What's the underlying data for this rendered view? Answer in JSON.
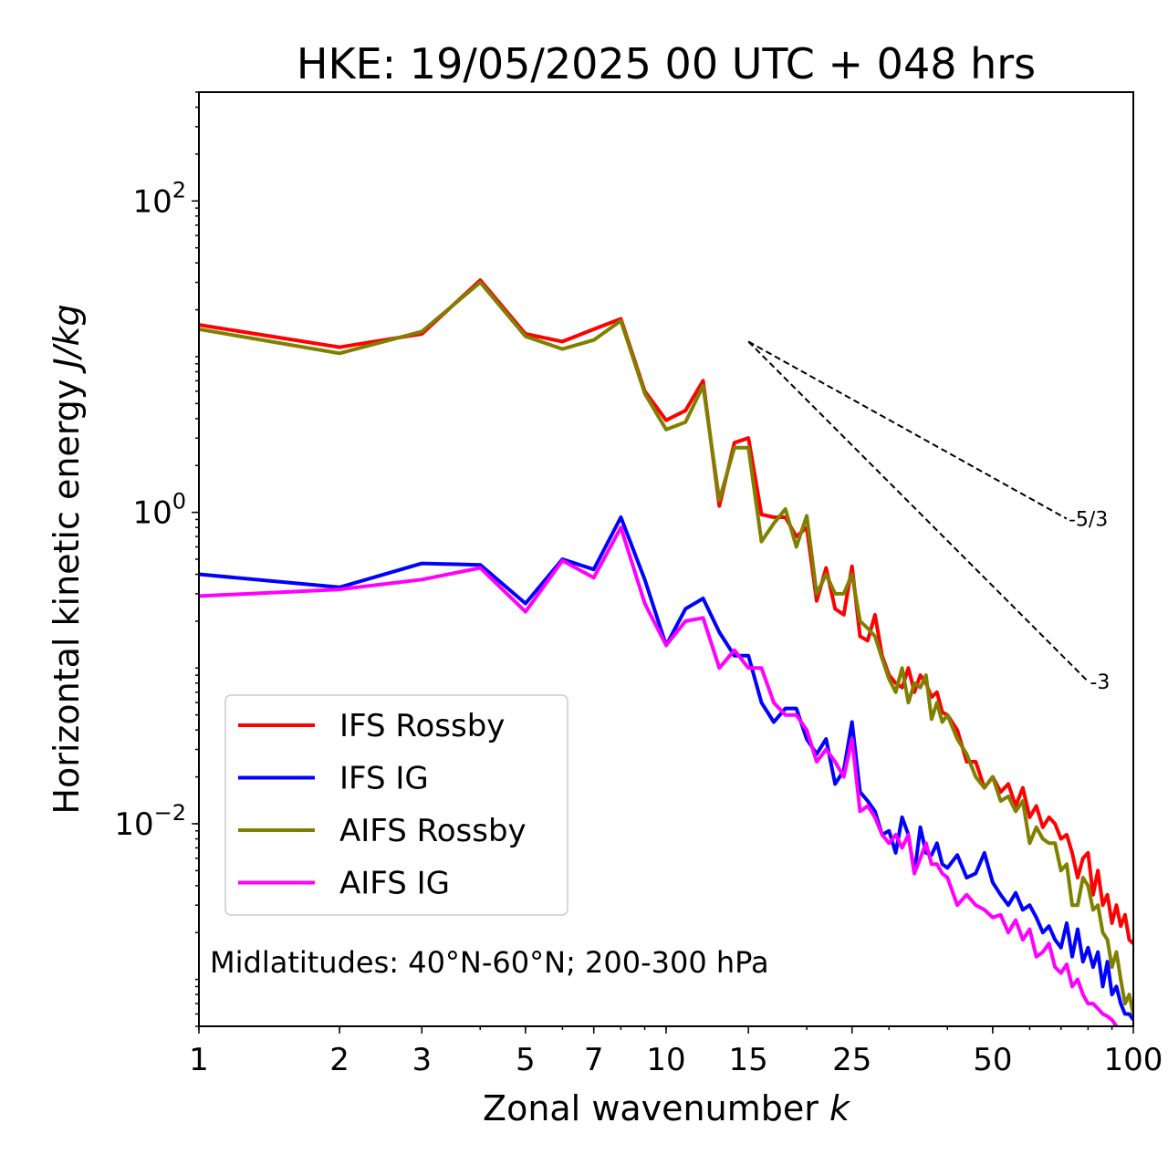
{
  "chart_data": {
    "type": "line",
    "title": "HKE: 19/05/2025 00 UTC + 048 hrs",
    "xlabel": "Zonal wavenumber",
    "xlabel_var": "k",
    "ylabel": "Horizontal kinetic energy",
    "ylabel_unit": "J/kg",
    "xscale": "log",
    "yscale": "log",
    "xlim": [
      1,
      100
    ],
    "ylim": [
      0.0005,
      500
    ],
    "x_ticks": [
      1,
      2,
      3,
      5,
      7,
      10,
      15,
      25,
      50,
      100
    ],
    "x_tick_labels": [
      "1",
      "2",
      "3",
      "5",
      "7",
      "10",
      "15",
      "25",
      "50",
      "100"
    ],
    "y_ticks": [
      100,
      1,
      0.01
    ],
    "y_tick_labels": [
      {
        "base": "10",
        "exp": "2"
      },
      {
        "base": "10",
        "exp": "0"
      },
      {
        "base": "10",
        "exp": "−2"
      }
    ],
    "legend_position": "lower-left",
    "annotation": "Midlatitudes: 40°N-60°N; 200-300 hPa",
    "reference_lines": [
      {
        "label": "-5/3",
        "x": [
          15,
          72
        ],
        "y": [
          12.5,
          0.91
        ]
      },
      {
        "label": "-3",
        "x": [
          15,
          80
        ],
        "y": [
          12.5,
          0.082
        ]
      }
    ],
    "series": [
      {
        "name": "IFS Rossby",
        "color": "#ff0000",
        "x": [
          1,
          2,
          3,
          4,
          5,
          6,
          7,
          8,
          9,
          10,
          11,
          12,
          13,
          14,
          15,
          16,
          17,
          18,
          19,
          20,
          21,
          22,
          23,
          24,
          25,
          26,
          27,
          28,
          29,
          30,
          31,
          32,
          33,
          34,
          35,
          36,
          37,
          38,
          39,
          40,
          42,
          44,
          46,
          48,
          50,
          52,
          54,
          56,
          58,
          60,
          62,
          64,
          66,
          68,
          70,
          72,
          74,
          76,
          78,
          80,
          82,
          84,
          86,
          88,
          90,
          92,
          94,
          96,
          98,
          100
        ],
        "y": [
          16,
          11.5,
          14,
          31,
          14,
          12.5,
          15,
          17.5,
          6,
          3.9,
          4.5,
          7,
          1.1,
          2.8,
          3,
          0.97,
          0.93,
          0.93,
          0.7,
          0.8,
          0.27,
          0.44,
          0.24,
          0.22,
          0.45,
          0.16,
          0.15,
          0.22,
          0.12,
          0.09,
          0.08,
          0.075,
          0.1,
          0.07,
          0.09,
          0.08,
          0.065,
          0.07,
          0.052,
          0.05,
          0.04,
          0.025,
          0.025,
          0.017,
          0.02,
          0.016,
          0.018,
          0.013,
          0.017,
          0.011,
          0.013,
          0.0095,
          0.011,
          0.01,
          0.008,
          0.0085,
          0.0065,
          0.0045,
          0.006,
          0.0065,
          0.0035,
          0.005,
          0.003,
          0.0035,
          0.0023,
          0.003,
          0.0022,
          0.0026,
          0.0018,
          0.0017
        ]
      },
      {
        "name": "IFS IG",
        "color": "#0000ff",
        "x": [
          1,
          2,
          3,
          4,
          5,
          6,
          7,
          8,
          9,
          10,
          11,
          12,
          13,
          14,
          15,
          16,
          17,
          18,
          19,
          20,
          21,
          22,
          23,
          24,
          25,
          26,
          27,
          28,
          29,
          30,
          31,
          32,
          33,
          34,
          35,
          36,
          37,
          38,
          39,
          40,
          42,
          44,
          46,
          48,
          50,
          52,
          54,
          56,
          58,
          60,
          62,
          64,
          66,
          68,
          70,
          72,
          74,
          76,
          78,
          80,
          82,
          84,
          86,
          88,
          90,
          92,
          94,
          96,
          98,
          100
        ],
        "y": [
          0.4,
          0.33,
          0.47,
          0.46,
          0.26,
          0.5,
          0.43,
          0.93,
          0.37,
          0.14,
          0.24,
          0.28,
          0.17,
          0.12,
          0.12,
          0.06,
          0.045,
          0.055,
          0.055,
          0.035,
          0.028,
          0.035,
          0.018,
          0.022,
          0.045,
          0.016,
          0.014,
          0.012,
          0.0085,
          0.009,
          0.0065,
          0.011,
          0.0085,
          0.0048,
          0.0095,
          0.0065,
          0.0063,
          0.0075,
          0.0055,
          0.0052,
          0.0063,
          0.0045,
          0.0048,
          0.0065,
          0.0042,
          0.0035,
          0.003,
          0.0036,
          0.0028,
          0.003,
          0.0025,
          0.002,
          0.0022,
          0.0018,
          0.0016,
          0.0023,
          0.0014,
          0.0021,
          0.0013,
          0.0016,
          0.0012,
          0.0015,
          0.0009,
          0.0013,
          0.0008,
          0.0009,
          0.0007,
          0.0006,
          0.0006,
          0.00055
        ]
      },
      {
        "name": "AIFS Rossby",
        "color": "#808000",
        "x": [
          1,
          2,
          3,
          4,
          5,
          6,
          7,
          8,
          9,
          10,
          11,
          12,
          13,
          14,
          15,
          16,
          17,
          18,
          19,
          20,
          21,
          22,
          23,
          24,
          25,
          26,
          27,
          28,
          29,
          30,
          31,
          32,
          33,
          34,
          35,
          36,
          37,
          38,
          39,
          40,
          42,
          44,
          46,
          48,
          50,
          52,
          54,
          56,
          58,
          60,
          62,
          64,
          66,
          68,
          70,
          72,
          74,
          76,
          78,
          80,
          82,
          84,
          86,
          88,
          90,
          92,
          94,
          96,
          98,
          100
        ],
        "y": [
          15,
          10.5,
          14.5,
          30,
          13.5,
          11.2,
          12.8,
          17,
          5.8,
          3.4,
          3.8,
          6.5,
          1.2,
          2.6,
          2.6,
          0.65,
          0.85,
          1.05,
          0.6,
          0.95,
          0.3,
          0.4,
          0.3,
          0.3,
          0.4,
          0.2,
          0.18,
          0.16,
          0.115,
          0.085,
          0.07,
          0.1,
          0.06,
          0.08,
          0.075,
          0.09,
          0.047,
          0.06,
          0.045,
          0.05,
          0.035,
          0.028,
          0.02,
          0.017,
          0.02,
          0.014,
          0.015,
          0.012,
          0.014,
          0.0075,
          0.0095,
          0.008,
          0.0075,
          0.0075,
          0.005,
          0.0055,
          0.003,
          0.003,
          0.0045,
          0.004,
          0.0028,
          0.003,
          0.002,
          0.0018,
          0.0012,
          0.0015,
          0.001,
          0.0007,
          0.0008,
          0.0006
        ]
      },
      {
        "name": "AIFS IG",
        "color": "#ff00ff",
        "x": [
          1,
          2,
          3,
          4,
          5,
          6,
          7,
          8,
          9,
          10,
          11,
          12,
          13,
          14,
          15,
          16,
          17,
          18,
          19,
          20,
          21,
          22,
          23,
          24,
          25,
          26,
          27,
          28,
          29,
          30,
          31,
          32,
          33,
          34,
          35,
          36,
          37,
          38,
          39,
          40,
          42,
          44,
          46,
          48,
          50,
          52,
          54,
          56,
          58,
          60,
          62,
          64,
          66,
          68,
          70,
          72,
          74,
          76,
          78,
          80,
          82,
          84,
          86,
          88,
          90,
          92,
          94,
          96,
          98,
          100
        ],
        "y": [
          0.29,
          0.32,
          0.37,
          0.44,
          0.23,
          0.49,
          0.38,
          0.8,
          0.26,
          0.14,
          0.2,
          0.21,
          0.1,
          0.13,
          0.1,
          0.1,
          0.06,
          0.05,
          0.05,
          0.04,
          0.025,
          0.03,
          0.025,
          0.02,
          0.035,
          0.012,
          0.013,
          0.011,
          0.0085,
          0.0075,
          0.0085,
          0.007,
          0.0085,
          0.0048,
          0.006,
          0.0075,
          0.0055,
          0.0055,
          0.0048,
          0.0045,
          0.003,
          0.0035,
          0.003,
          0.0028,
          0.0025,
          0.0026,
          0.002,
          0.0024,
          0.0018,
          0.0021,
          0.0014,
          0.0015,
          0.0017,
          0.0012,
          0.0011,
          0.00125,
          0.0009,
          0.001,
          0.0008,
          0.0007,
          0.0007,
          0.00065,
          0.0006,
          0.00058,
          0.00055,
          0.0005,
          0.00048,
          0.00045,
          0.00043,
          0.0004
        ]
      }
    ]
  }
}
